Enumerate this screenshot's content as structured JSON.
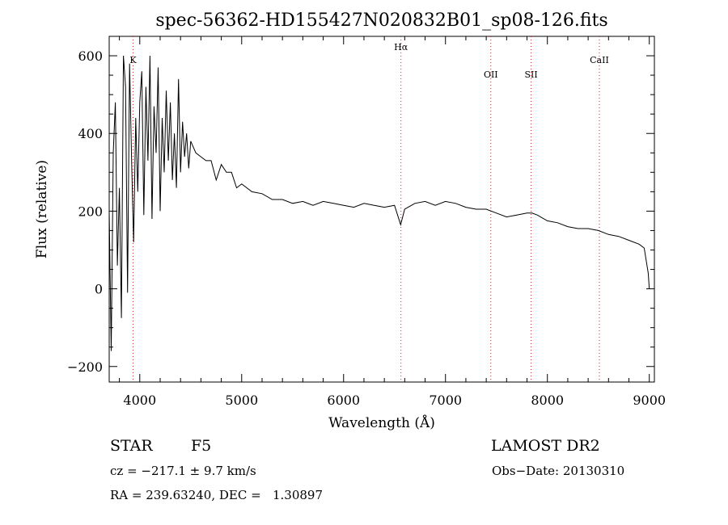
{
  "chart_data": {
    "type": "line",
    "title": "spec-56362-HD155427N020832B01_sp08-126.fits",
    "xlabel": "Wavelength (Å)",
    "ylabel": "Flux (relative)",
    "xlim": [
      3700,
      9050
    ],
    "ylim": [
      -240,
      650
    ],
    "x_ticks": [
      4000,
      5000,
      6000,
      7000,
      8000,
      9000
    ],
    "y_ticks": [
      -200,
      0,
      200,
      400,
      600
    ],
    "grid": false,
    "series": [
      {
        "x": [
          3700,
          3720,
          3740,
          3760,
          3780,
          3800,
          3820,
          3840,
          3860,
          3880,
          3900,
          3920,
          3940,
          3960,
          3980,
          4000,
          4020,
          4040,
          4060,
          4080,
          4100,
          4120,
          4140,
          4160,
          4180,
          4200,
          4220,
          4240,
          4260,
          4280,
          4300,
          4320,
          4340,
          4360,
          4380,
          4400,
          4420,
          4440,
          4460,
          4480,
          4500,
          4550,
          4600,
          4650,
          4700,
          4750,
          4800,
          4850,
          4900,
          4950,
          5000,
          5100,
          5200,
          5300,
          5400,
          5500,
          5600,
          5700,
          5800,
          5900,
          6000,
          6100,
          6200,
          6300,
          6400,
          6500,
          6560,
          6600,
          6700,
          6800,
          6900,
          7000,
          7100,
          7200,
          7300,
          7400,
          7500,
          7600,
          7700,
          7800,
          7850,
          7900,
          8000,
          8100,
          8200,
          8300,
          8400,
          8500,
          8600,
          8700,
          8800,
          8900,
          8950,
          8990,
          9000
        ],
        "y": [
          200,
          -160,
          350,
          480,
          60,
          260,
          -75,
          600,
          520,
          -10,
          580,
          330,
          120,
          440,
          250,
          480,
          560,
          190,
          520,
          330,
          600,
          180,
          470,
          350,
          570,
          200,
          440,
          300,
          510,
          330,
          480,
          280,
          400,
          260,
          540,
          300,
          430,
          340,
          400,
          310,
          380,
          350,
          340,
          330,
          330,
          280,
          320,
          300,
          300,
          260,
          270,
          250,
          245,
          230,
          230,
          220,
          225,
          215,
          225,
          220,
          215,
          210,
          220,
          215,
          210,
          215,
          165,
          205,
          220,
          225,
          215,
          225,
          220,
          210,
          205,
          205,
          195,
          185,
          190,
          195,
          195,
          190,
          175,
          170,
          160,
          155,
          155,
          150,
          140,
          135,
          125,
          115,
          105,
          40,
          0
        ]
      }
    ],
    "lines": [
      {
        "label": "K",
        "x": 3934
      },
      {
        "label": "Hα",
        "x": 6563
      },
      {
        "label": "OII",
        "x": 7445
      },
      {
        "label": "SII",
        "x": 7840
      },
      {
        "label": "CaII",
        "x": 8510
      }
    ]
  },
  "info": {
    "object_type": "STAR",
    "subclass": "F5",
    "survey": "LAMOST DR2",
    "cz": "cz = −217.1 ± 9.7 km/s",
    "obs_date": "Obs−Date: 20130310",
    "coords": "RA = 239.63240, DEC =   1.30897"
  }
}
